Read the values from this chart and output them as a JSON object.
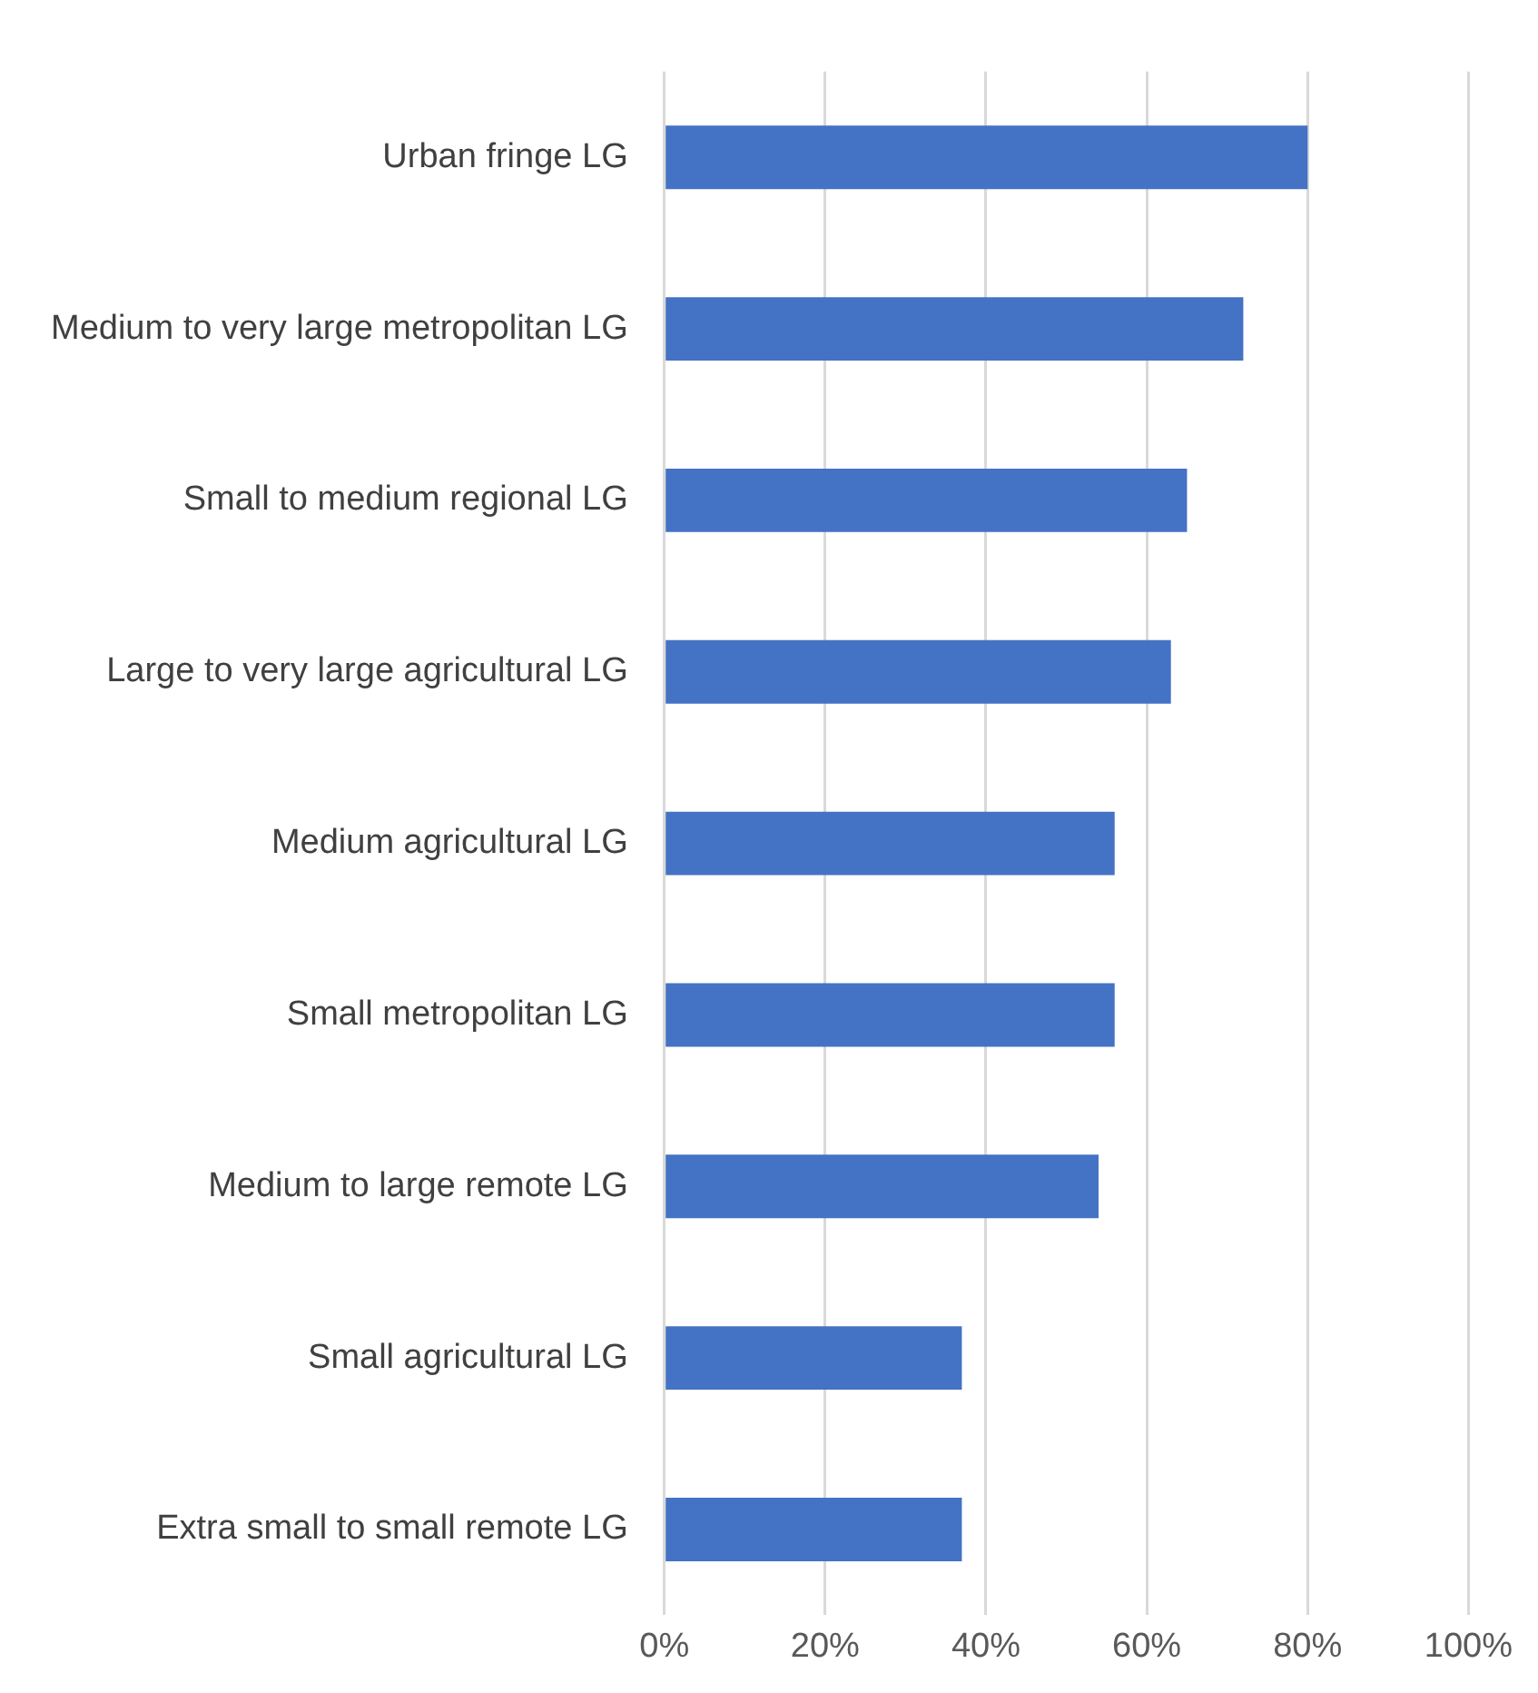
{
  "chart_data": {
    "type": "bar",
    "orientation": "horizontal",
    "categories": [
      "Urban fringe LG",
      "Medium to very large metropolitan LG",
      "Small to medium regional LG",
      "Large to very large agricultural LG",
      "Medium agricultural LG",
      "Small metropolitan LG",
      "Medium to large remote LG",
      "Small agricultural LG",
      "Extra small to small remote LG"
    ],
    "values": [
      80,
      72,
      65,
      63,
      56,
      56,
      54,
      37,
      37
    ],
    "color": "#4472c4",
    "xlim": [
      0,
      100
    ],
    "xticks": [
      {
        "value": 0,
        "label": "0%"
      },
      {
        "value": 20,
        "label": "20%"
      },
      {
        "value": 40,
        "label": "40%"
      },
      {
        "value": 60,
        "label": "60%"
      },
      {
        "value": 80,
        "label": "80%"
      },
      {
        "value": 100,
        "label": "100%"
      }
    ],
    "grid": "x",
    "legend": false
  }
}
